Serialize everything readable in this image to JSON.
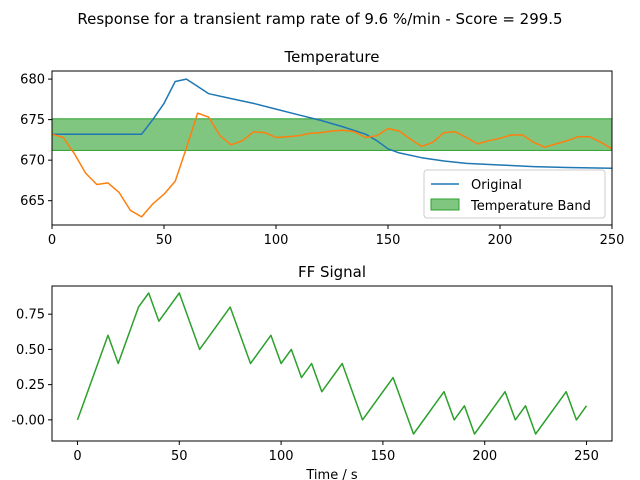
{
  "suptitle": "Response for a transient ramp rate of 9.6 %/min - Score = 299.5",
  "chart_data": [
    {
      "type": "line",
      "title": "Temperature",
      "xlabel": "",
      "ylabel": "",
      "xlim": [
        0,
        250
      ],
      "ylim": [
        662,
        681
      ],
      "xticks": [
        0,
        50,
        100,
        150,
        200,
        250
      ],
      "yticks": [
        665,
        670,
        675,
        680
      ],
      "grid": false,
      "legend_position": "lower-right",
      "band": {
        "name": "Temperature Band",
        "y0": 671.2,
        "y1": 675.1,
        "color": "#2ca02c"
      },
      "series": [
        {
          "name": "Original",
          "color": "#1f77b4",
          "x": [
            0,
            10,
            20,
            30,
            40,
            45,
            50,
            55,
            60,
            65,
            70,
            80,
            90,
            100,
            110,
            120,
            130,
            140,
            145,
            150,
            155,
            165,
            175,
            185,
            200,
            215,
            230,
            250
          ],
          "y": [
            673.2,
            673.2,
            673.2,
            673.2,
            673.2,
            675.0,
            677.0,
            679.7,
            680.0,
            679.1,
            678.2,
            677.6,
            677.0,
            676.3,
            675.6,
            674.9,
            674.1,
            673.2,
            672.4,
            671.4,
            670.9,
            670.3,
            669.9,
            669.6,
            669.4,
            669.2,
            669.1,
            669.0
          ]
        },
        {
          "name": "",
          "color": "#ff7f0e",
          "x": [
            0,
            5,
            10,
            15,
            20,
            25,
            30,
            35,
            40,
            45,
            50,
            55,
            60,
            65,
            70,
            75,
            80,
            85,
            90,
            95,
            100,
            105,
            110,
            115,
            120,
            125,
            130,
            135,
            140,
            145,
            150,
            155,
            160,
            165,
            170,
            175,
            180,
            185,
            190,
            195,
            200,
            205,
            210,
            215,
            220,
            225,
            230,
            235,
            240,
            245,
            250
          ],
          "y": [
            673.2,
            672.8,
            670.8,
            668.4,
            667.0,
            667.2,
            666.0,
            663.8,
            663.0,
            664.6,
            665.8,
            667.4,
            671.5,
            675.8,
            675.3,
            673.0,
            671.9,
            672.4,
            673.5,
            673.4,
            672.8,
            672.9,
            673.0,
            673.3,
            673.4,
            673.6,
            673.7,
            673.5,
            672.8,
            673.0,
            673.9,
            673.6,
            672.6,
            671.7,
            672.2,
            673.4,
            673.5,
            672.8,
            672.0,
            672.4,
            672.7,
            673.1,
            673.1,
            672.2,
            671.6,
            672.0,
            672.4,
            672.9,
            672.9,
            672.2,
            671.4
          ]
        }
      ]
    },
    {
      "type": "line",
      "title": "FF Signal",
      "xlabel": "Time / s",
      "ylabel": "",
      "xlim": [
        -12.5,
        262.5
      ],
      "ylim": [
        -0.15,
        0.95
      ],
      "xticks": [
        0,
        50,
        100,
        150,
        200,
        250
      ],
      "yticks": [
        "-0.00",
        "0.25",
        "0.50",
        "0.75"
      ],
      "grid": false,
      "series": [
        {
          "name": "",
          "color": "#2ca02c",
          "x": [
            0,
            15,
            20,
            30,
            35,
            40,
            50,
            60,
            75,
            85,
            95,
            100,
            105,
            110,
            115,
            120,
            130,
            140,
            155,
            165,
            180,
            185,
            190,
            195,
            210,
            215,
            220,
            225,
            240,
            245,
            250
          ],
          "y": [
            0,
            0.6,
            0.4,
            0.8,
            0.9,
            0.7,
            0.9,
            0.5,
            0.8,
            0.4,
            0.6,
            0.4,
            0.5,
            0.3,
            0.4,
            0.2,
            0.4,
            0,
            0.3,
            -0.1,
            0.2,
            0,
            0.1,
            -0.1,
            0.2,
            0,
            0.1,
            -0.1,
            0.2,
            0,
            0.1
          ]
        }
      ]
    }
  ]
}
